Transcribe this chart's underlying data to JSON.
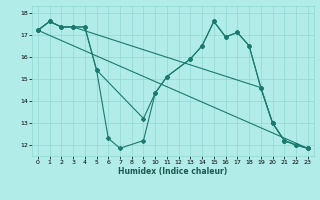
{
  "xlabel": "Humidex (Indice chaleur)",
  "bg_color": "#b2ece8",
  "grid_color": "#8fd8d2",
  "line_color": "#1a7a6e",
  "xlim": [
    -0.5,
    23.5
  ],
  "ylim": [
    11.5,
    18.3
  ],
  "yticks": [
    12,
    13,
    14,
    15,
    16,
    17,
    18
  ],
  "xticks": [
    0,
    1,
    2,
    3,
    4,
    5,
    6,
    7,
    8,
    9,
    10,
    11,
    12,
    13,
    14,
    15,
    16,
    17,
    18,
    19,
    20,
    21,
    22,
    23
  ],
  "lines": [
    {
      "x": [
        0,
        1,
        2,
        3,
        4,
        5,
        6,
        7,
        9,
        10,
        11,
        13,
        14,
        15,
        16,
        17,
        18,
        19,
        20,
        21,
        22,
        23
      ],
      "y": [
        17.2,
        17.6,
        17.35,
        17.35,
        17.35,
        15.4,
        12.3,
        11.85,
        12.2,
        14.35,
        15.1,
        15.9,
        16.5,
        17.6,
        16.9,
        17.1,
        16.5,
        14.6,
        13.0,
        12.2,
        12.0,
        11.85
      ]
    },
    {
      "x": [
        0,
        1,
        2,
        3,
        4,
        5,
        9,
        10,
        11,
        13,
        14,
        15,
        16,
        17,
        18,
        19,
        20,
        21,
        22,
        23
      ],
      "y": [
        17.2,
        17.6,
        17.35,
        17.35,
        17.35,
        15.4,
        13.2,
        14.35,
        15.1,
        15.9,
        16.5,
        17.6,
        16.9,
        17.1,
        16.5,
        14.6,
        13.0,
        12.2,
        12.0,
        11.85
      ]
    },
    {
      "x": [
        0,
        1,
        2,
        3,
        19,
        20,
        21,
        22,
        23
      ],
      "y": [
        17.2,
        17.6,
        17.35,
        17.35,
        14.6,
        13.0,
        12.2,
        12.0,
        11.85
      ]
    },
    {
      "x": [
        0,
        23
      ],
      "y": [
        17.2,
        11.85
      ]
    }
  ]
}
